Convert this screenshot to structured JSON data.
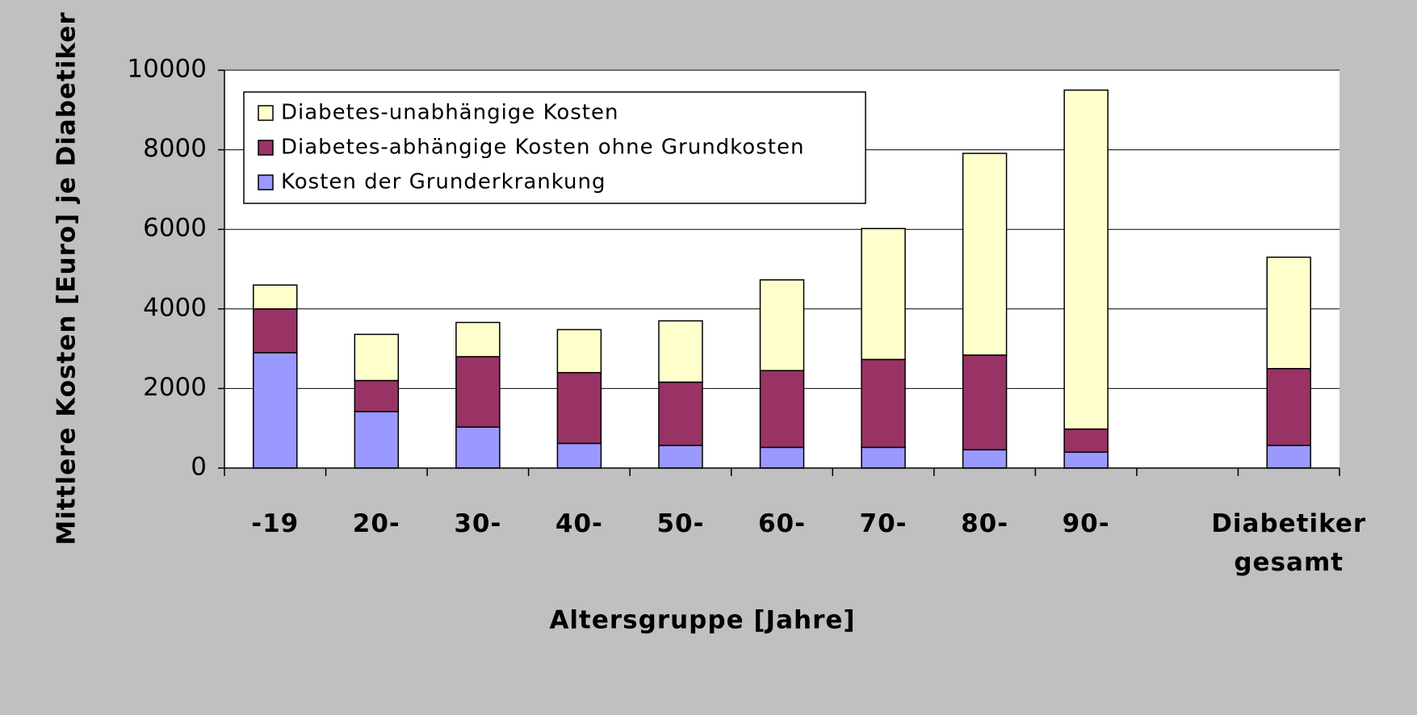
{
  "chart_data": {
    "type": "stacked_bar",
    "categories": [
      "-19",
      "20-",
      "30-",
      "40-",
      "50-",
      "60-",
      "70-",
      "80-",
      "90-",
      null,
      "Diabetiker gesamt"
    ],
    "series": [
      {
        "name": "Kosten der Grunderkrankung",
        "color": "#9999ff",
        "values": [
          2900,
          1420,
          1030,
          620,
          570,
          520,
          520,
          460,
          400,
          null,
          570
        ]
      },
      {
        "name": "Diabetes-abhängige Kosten ohne Grundkosten",
        "color": "#993366",
        "values": [
          1100,
          780,
          1770,
          1780,
          1590,
          1930,
          2210,
          2380,
          580,
          null,
          1930
        ]
      },
      {
        "name": "Diabetes-unabhängige Kosten",
        "color": "#ffffcc",
        "values": [
          600,
          1160,
          860,
          1080,
          1540,
          2280,
          3290,
          5070,
          8520,
          null,
          2800
        ]
      }
    ],
    "x_label": "Altersgruppe [Jahre]",
    "y_label": "Mittlere Kosten [Euro] je Diabetiker",
    "ylim": [
      0,
      10000
    ],
    "yticks": [
      0,
      2000,
      4000,
      6000,
      8000,
      10000
    ],
    "grid": true,
    "legend": "top-left"
  }
}
